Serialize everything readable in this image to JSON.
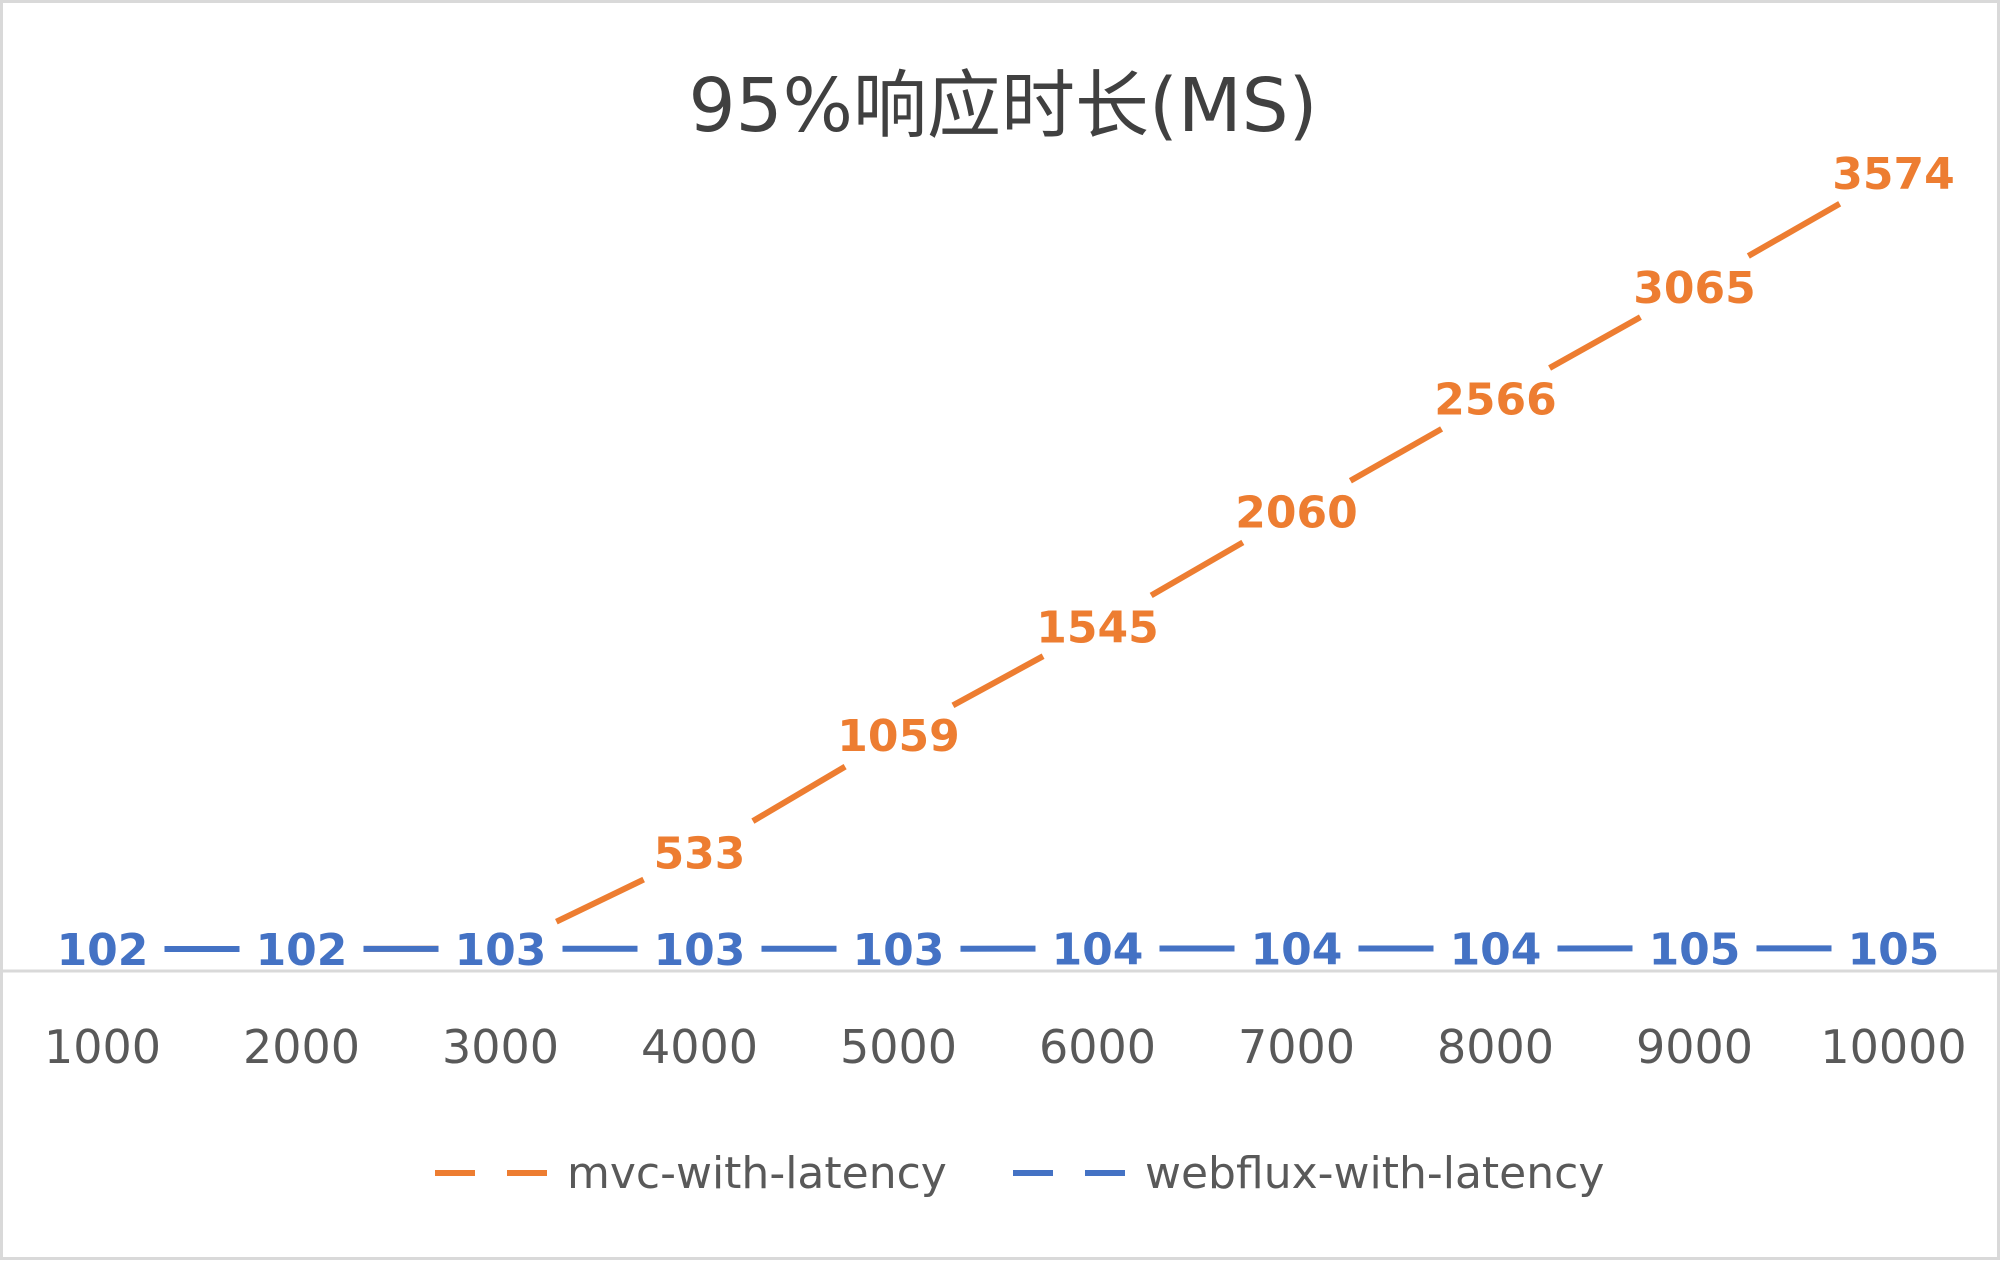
{
  "chart_data": {
    "type": "line",
    "title": "95%响应时长(MS)",
    "xlabel": "",
    "ylabel": "",
    "categories": [
      "1000",
      "2000",
      "3000",
      "4000",
      "5000",
      "6000",
      "7000",
      "8000",
      "9000",
      "10000"
    ],
    "series": [
      {
        "name": "mvc-with-latency",
        "color": "#ed7d31",
        "values": [
          102,
          102,
          104,
          533,
          1059,
          1545,
          2060,
          2566,
          3065,
          3574
        ]
      },
      {
        "name": "webflux-with-latency",
        "color": "#4472c4",
        "values": [
          102,
          102,
          103,
          103,
          103,
          104,
          104,
          104,
          105,
          105
        ]
      }
    ],
    "ylim": [
      102,
      3574
    ],
    "grid": false,
    "legend": "bottom",
    "data_labels": true
  }
}
